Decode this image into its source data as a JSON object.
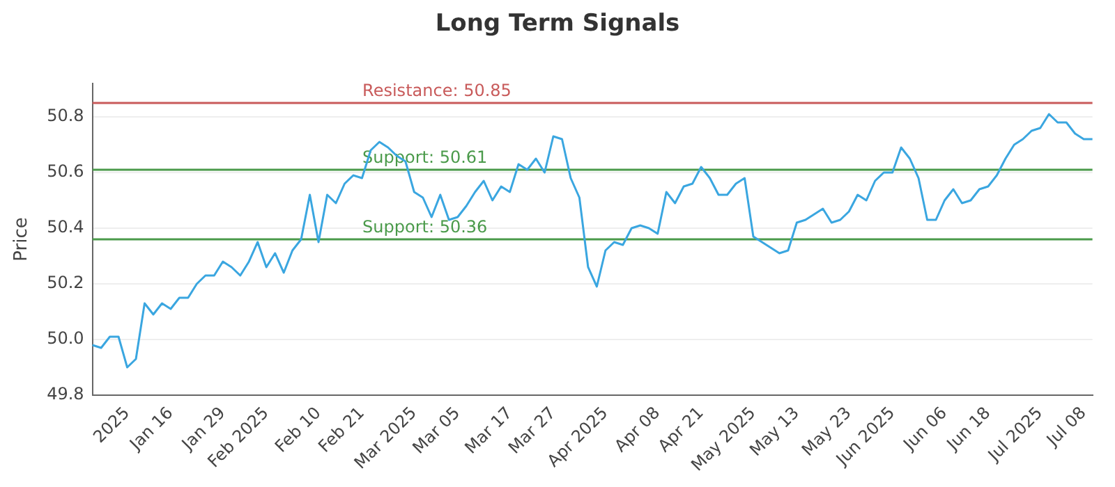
{
  "chart_data": {
    "type": "line",
    "title": "Long Term Signals",
    "ylabel": "Price",
    "categories": [
      null,
      null,
      null,
      null,
      "2025",
      null,
      null,
      null,
      null,
      "Jan 16",
      null,
      null,
      null,
      null,
      null,
      "Jan 29",
      null,
      null,
      null,
      null,
      "Feb 2025",
      null,
      null,
      null,
      null,
      null,
      "Feb 10",
      null,
      null,
      null,
      null,
      "Feb 21",
      null,
      null,
      null,
      null,
      null,
      "Mar 2025",
      null,
      null,
      null,
      null,
      "Mar 05",
      null,
      null,
      null,
      null,
      null,
      "Mar 17",
      null,
      null,
      null,
      null,
      "Mar 27",
      null,
      null,
      null,
      null,
      null,
      "Apr 2025",
      null,
      null,
      null,
      null,
      null,
      "Apr 08",
      null,
      null,
      null,
      null,
      "Apr 21",
      null,
      null,
      null,
      null,
      null,
      "May 2025",
      null,
      null,
      null,
      null,
      "May 13",
      null,
      null,
      null,
      null,
      null,
      "May 23",
      null,
      null,
      null,
      null,
      "Jun 2025",
      null,
      null,
      null,
      null,
      null,
      "Jun 06",
      null,
      null,
      null,
      null,
      "Jun 18",
      null,
      null,
      null,
      null,
      null,
      "Jul 2025",
      null,
      null,
      null,
      null,
      "Jul 08",
      null
    ],
    "series": [
      {
        "color": "#3aa6e0",
        "values": [
          49.98,
          49.97,
          50.01,
          50.01,
          49.9,
          49.93,
          50.13,
          50.09,
          50.13,
          50.11,
          50.15,
          50.15,
          50.2,
          50.23,
          50.23,
          50.28,
          50.26,
          50.23,
          50.28,
          50.35,
          50.26,
          50.31,
          50.24,
          50.32,
          50.36,
          50.52,
          50.35,
          50.52,
          50.49,
          50.56,
          50.59,
          50.58,
          50.68,
          50.71,
          50.69,
          50.66,
          50.64,
          50.53,
          50.51,
          50.44,
          50.52,
          50.43,
          50.44,
          50.48,
          50.53,
          50.57,
          50.5,
          50.55,
          50.53,
          50.63,
          50.61,
          50.65,
          50.6,
          50.73,
          50.72,
          50.58,
          50.51,
          50.26,
          50.19,
          50.32,
          50.35,
          50.34,
          50.4,
          50.41,
          50.4,
          50.38,
          50.53,
          50.49,
          50.55,
          50.56,
          50.62,
          50.58,
          50.52,
          50.52,
          50.56,
          50.58,
          50.37,
          50.35,
          50.33,
          50.31,
          50.32,
          50.42,
          50.43,
          50.45,
          50.47,
          50.42,
          50.43,
          50.46,
          50.52,
          50.5,
          50.57,
          50.6,
          50.6,
          50.69,
          50.65,
          50.58,
          50.43,
          50.43,
          50.5,
          50.54,
          50.49,
          50.5,
          50.54,
          50.55,
          50.59,
          50.65,
          50.7,
          50.72,
          50.75,
          50.76,
          50.81,
          50.78,
          50.78,
          50.74,
          50.72,
          50.72
        ]
      }
    ],
    "ylim": [
      49.8,
      50.92
    ],
    "yticks": [
      49.8,
      {
        "value": 50,
        "label": "50.0"
      },
      50.2,
      50.4,
      50.6,
      50.8
    ],
    "ref_lines": [
      {
        "axis": "y",
        "value": 50.85,
        "label": "Resistance: 50.85",
        "color": "#c85a5a"
      },
      {
        "axis": "y",
        "value": 50.61,
        "label": "Support: 50.61",
        "color": "#4a9a4a"
      },
      {
        "axis": "y",
        "value": 50.36,
        "label": "Support: 50.36",
        "color": "#4a9a4a"
      }
    ],
    "grid": "y",
    "legend": false,
    "marker": "none",
    "line_style": "solid"
  }
}
